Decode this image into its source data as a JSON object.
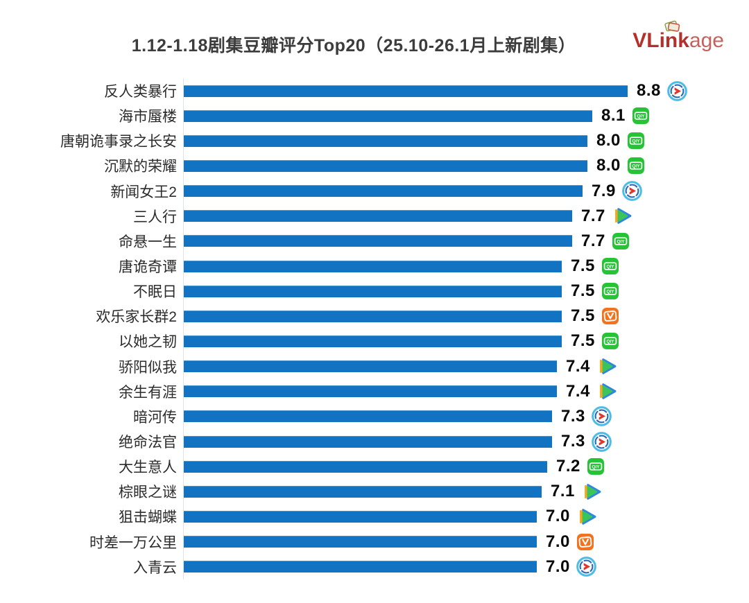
{
  "title": "1.12-1.18剧集豆瓣评分Top20（25.10-26.1月上新剧集）",
  "logo": {
    "bold": "VLink",
    "light": "age"
  },
  "colors": {
    "bar": "#1173c2",
    "title_text": "#3c3c3c",
    "logo_red": "#b5302b",
    "iqiyi_green": "#27c337",
    "youku_ring": "#4bbbe8",
    "youku_inner": "#2b6ab4",
    "youku_arrow": "#e0372c",
    "tencent_blue": "#2e86df",
    "tencent_green": "#3ac45c",
    "tencent_orange": "#f6a71f",
    "mango_orange": "#f2731f"
  },
  "chart_data": {
    "type": "bar",
    "orientation": "horizontal",
    "title": "1.12-1.18剧集豆瓣评分Top20（25.10-26.1月上新剧集）",
    "xlabel": "",
    "ylabel": "",
    "xlim": [
      0,
      8.8
    ],
    "grid": false,
    "legend": false,
    "value_labels": true,
    "categories": [
      "反人类暴行",
      "海市蜃楼",
      "唐朝诡事录之长安",
      "沉默的荣耀",
      "新闻女王2",
      "三人行",
      "命悬一生",
      "唐诡奇谭",
      "不眠日",
      "欢乐家长群2",
      "以她之韧",
      "骄阳似我",
      "余生有涯",
      "暗河传",
      "绝命法官",
      "大生意人",
      "棕眼之谜",
      "狙击蝴蝶",
      "时差一万公里",
      "入青云"
    ],
    "values": [
      8.8,
      8.1,
      8.0,
      8.0,
      7.9,
      7.7,
      7.7,
      7.5,
      7.5,
      7.5,
      7.5,
      7.4,
      7.4,
      7.3,
      7.3,
      7.2,
      7.1,
      7.0,
      7.0,
      7.0
    ],
    "platforms": [
      "youku",
      "iqiyi",
      "iqiyi",
      "iqiyi",
      "youku",
      "tencent",
      "iqiyi",
      "iqiyi",
      "iqiyi",
      "mango",
      "iqiyi",
      "tencent",
      "tencent",
      "youku",
      "youku",
      "iqiyi",
      "tencent",
      "tencent",
      "mango",
      "youku"
    ],
    "iqiyi_badge_text": "QIY"
  }
}
